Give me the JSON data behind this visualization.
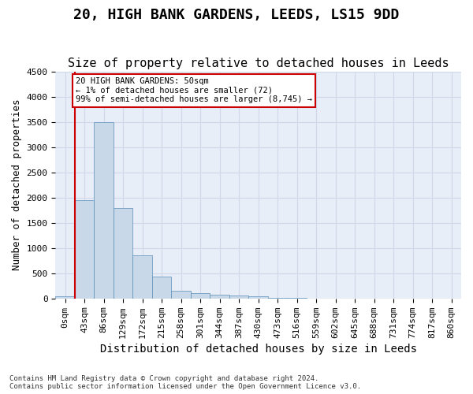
{
  "title": "20, HIGH BANK GARDENS, LEEDS, LS15 9DD",
  "subtitle": "Size of property relative to detached houses in Leeds",
  "xlabel": "Distribution of detached houses by size in Leeds",
  "ylabel": "Number of detached properties",
  "bin_labels": [
    "0sqm",
    "43sqm",
    "86sqm",
    "129sqm",
    "172sqm",
    "215sqm",
    "258sqm",
    "301sqm",
    "344sqm",
    "387sqm",
    "430sqm",
    "473sqm",
    "516sqm",
    "559sqm",
    "602sqm",
    "645sqm",
    "688sqm",
    "731sqm",
    "774sqm",
    "817sqm",
    "860sqm"
  ],
  "bar_heights": [
    50,
    1950,
    3500,
    1800,
    850,
    430,
    160,
    100,
    75,
    55,
    40,
    20,
    10,
    5,
    3,
    2,
    1,
    1,
    1,
    0,
    0
  ],
  "bar_color": "#c8d8e8",
  "bar_edge_color": "#5b8db8",
  "property_line_color": "#cc0000",
  "annotation_text": "20 HIGH BANK GARDENS: 50sqm\n← 1% of detached houses are smaller (72)\n99% of semi-detached houses are larger (8,745) →",
  "annotation_box_color": "#cc0000",
  "ylim": [
    0,
    4500
  ],
  "yticks": [
    0,
    500,
    1000,
    1500,
    2000,
    2500,
    3000,
    3500,
    4000,
    4500
  ],
  "footer_line1": "Contains HM Land Registry data © Crown copyright and database right 2024.",
  "footer_line2": "Contains public sector information licensed under the Open Government Licence v3.0.",
  "bg_color": "#ffffff",
  "plot_bg_color": "#e8eef8",
  "grid_color": "#d0d8e8",
  "title_fontsize": 13,
  "subtitle_fontsize": 11,
  "axis_fontsize": 9,
  "tick_fontsize": 8,
  "footer_fontsize": 6.5
}
